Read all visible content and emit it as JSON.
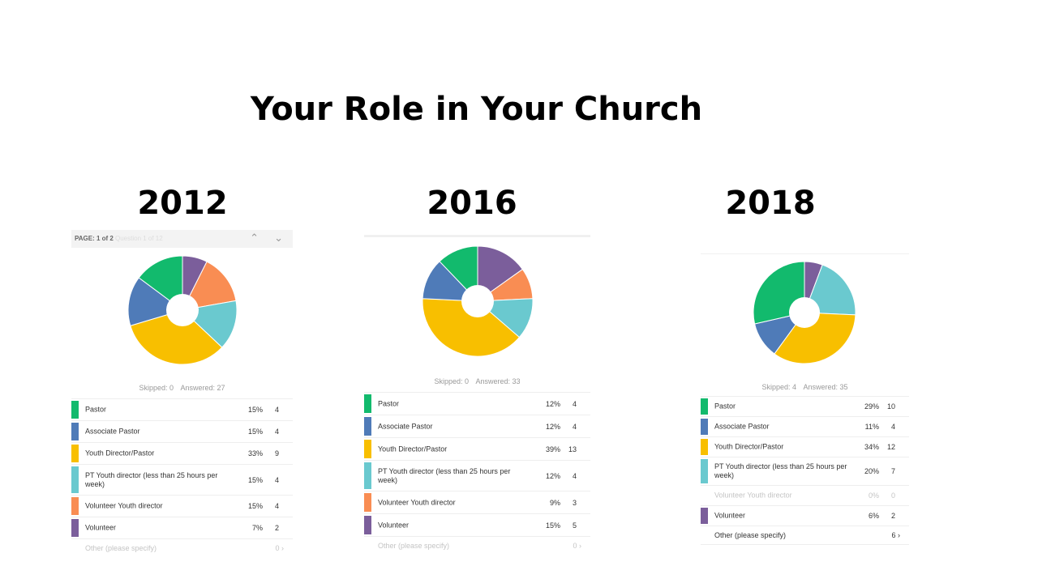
{
  "title": "Your Role in Your Church",
  "page_bar": {
    "label": "PAGE: 1 of 2",
    "ghost": "Question 1 of 12"
  },
  "colors": {
    "Pastor": "#12ba6d",
    "Associate Pastor": "#4f7bb8",
    "Youth Director/Pastor": "#f8bf00",
    "PT Youth director": "#6ac9cf",
    "Volunteer Youth director": "#f98d53",
    "Volunteer": "#7b5e9b"
  },
  "chart_data": [
    {
      "type": "pie",
      "year": "2012",
      "skipped_label": "Skipped: 0",
      "answered_label": "Answered: 27",
      "categories": [
        "Pastor",
        "Associate Pastor",
        "Youth Director/Pastor",
        "PT Youth director (less than 25 hours per week)",
        "Volunteer Youth director",
        "Volunteer"
      ],
      "percent_labels": [
        "15%",
        "15%",
        "33%",
        "15%",
        "15%",
        "7%"
      ],
      "values": [
        4,
        4,
        9,
        4,
        4,
        2
      ],
      "muted": [
        false,
        false,
        false,
        false,
        false,
        false
      ],
      "other": {
        "label": "Other (please specify)",
        "count": "0",
        "style": "muted"
      }
    },
    {
      "type": "pie",
      "year": "2016",
      "skipped_label": "Skipped: 0",
      "answered_label": "Answered: 33",
      "categories": [
        "Pastor",
        "Associate Pastor",
        "Youth Director/Pastor",
        "PT Youth director (less than 25 hours per week)",
        "Volunteer Youth director",
        "Volunteer"
      ],
      "percent_labels": [
        "12%",
        "12%",
        "39%",
        "12%",
        "9%",
        "15%"
      ],
      "values": [
        4,
        4,
        13,
        4,
        3,
        5
      ],
      "muted": [
        false,
        false,
        false,
        false,
        false,
        false
      ],
      "other": {
        "label": "Other (please specify)",
        "count": "0",
        "style": "muted"
      }
    },
    {
      "type": "pie",
      "year": "2018",
      "skipped_label": "Skipped: 4",
      "answered_label": "Answered: 35",
      "categories": [
        "Pastor",
        "Associate Pastor",
        "Youth Director/Pastor",
        "PT Youth director (less than 25 hours per week)",
        "Volunteer Youth director",
        "Volunteer"
      ],
      "percent_labels": [
        "29%",
        "11%",
        "34%",
        "20%",
        "0%",
        "6%"
      ],
      "values": [
        10,
        4,
        12,
        7,
        0,
        2
      ],
      "muted": [
        false,
        false,
        false,
        false,
        true,
        false
      ],
      "other": {
        "label": "Other (please specify)",
        "count": "6",
        "style": "dark"
      }
    }
  ]
}
